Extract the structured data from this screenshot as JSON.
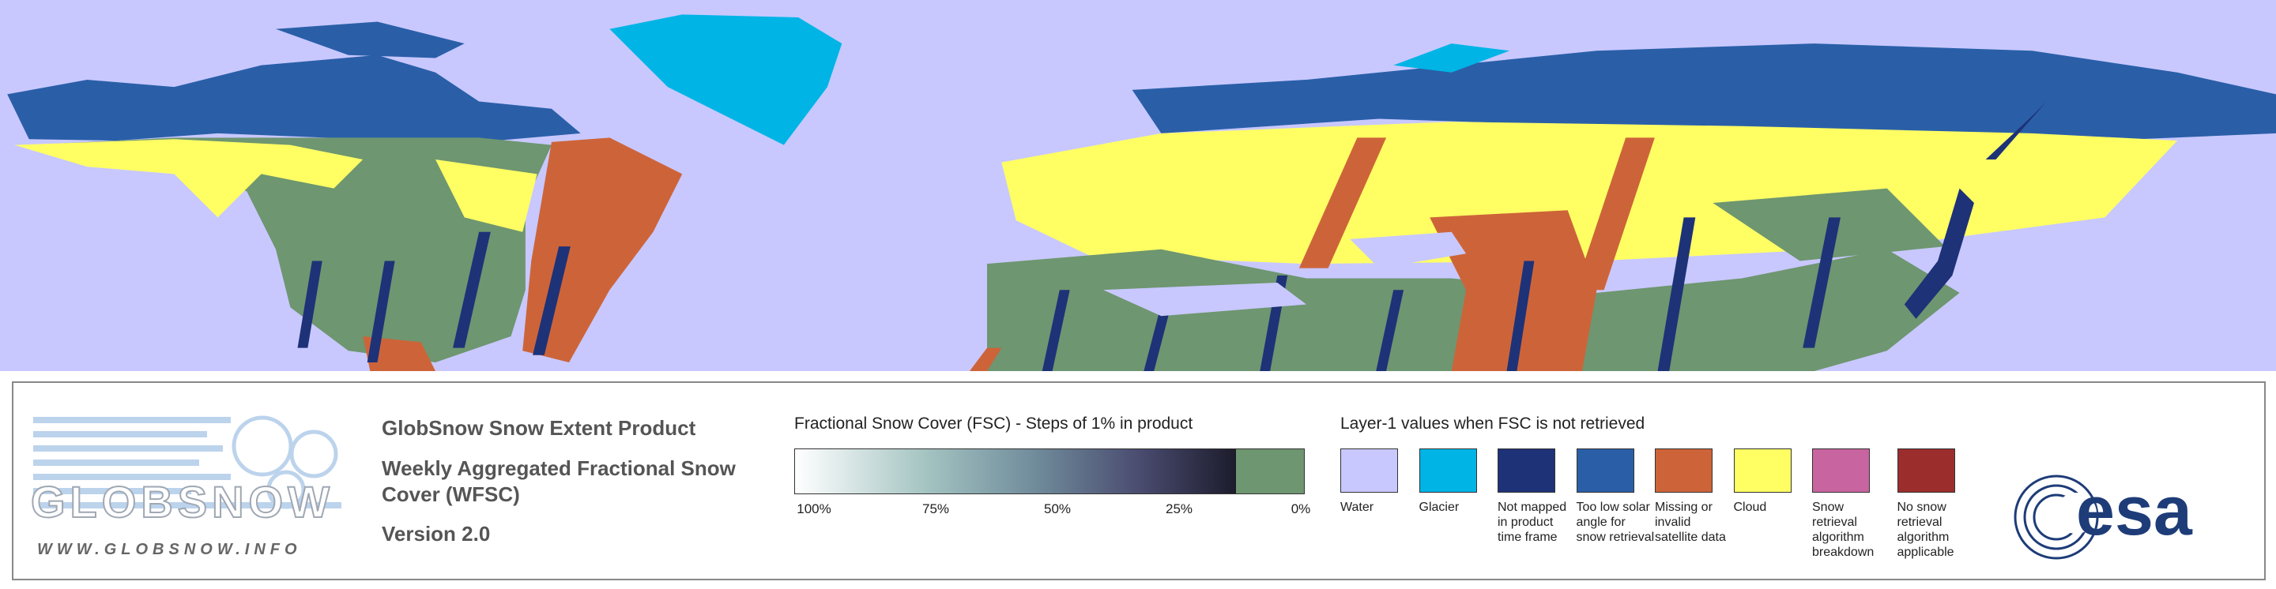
{
  "logo": {
    "name": "GLOBSNOW",
    "url": "WWW.GLOBSNOW.INFO"
  },
  "product": {
    "title": "GlobSnow Snow Extent Product",
    "subtitle": "Weekly Aggregated Fractional Snow Cover (WFSC)",
    "version": "Version 2.0"
  },
  "fsc_scale": {
    "title": "Fractional Snow Cover (FSC) - Steps of 1% in product",
    "labels": [
      "100%",
      "75%",
      "50%",
      "25%",
      "0%"
    ]
  },
  "layer1": {
    "title": "Layer-1 values when FSC is not retrieved",
    "items": [
      {
        "label": "Water",
        "color": "#c8c8ff"
      },
      {
        "label": "Glacier",
        "color": "#00b4e6"
      },
      {
        "label": "Not mapped in product time frame",
        "color": "#1e3278"
      },
      {
        "label": "Too low solar angle for snow retrieval",
        "color": "#2a5fa8"
      },
      {
        "label": "Missing or invalid satellite data",
        "color": "#cd6439"
      },
      {
        "label": "Cloud",
        "color": "#ffff64"
      },
      {
        "label": "Snow retrieval algorithm breakdown",
        "color": "#c864a0"
      },
      {
        "label": "No snow retrieval algorithm applicable",
        "color": "#9b2d2d"
      }
    ]
  },
  "agency": "esa"
}
